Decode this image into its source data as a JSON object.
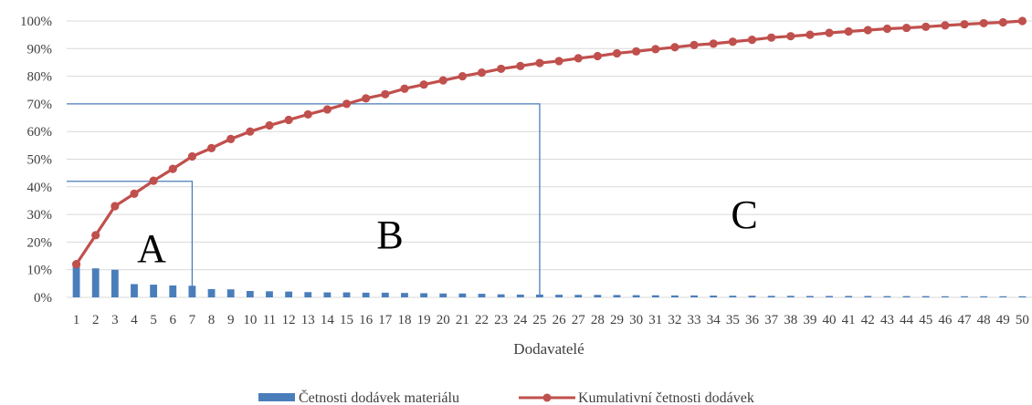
{
  "chart_data": {
    "type": "bar+line",
    "title": "",
    "xlabel": "Dodavatelé",
    "ylabel": "",
    "ylim": [
      0,
      100
    ],
    "y_unit": "%",
    "y_ticks": [
      0,
      10,
      20,
      30,
      40,
      50,
      60,
      70,
      80,
      90,
      100
    ],
    "y_tick_labels": [
      "0%",
      "10%",
      "20%",
      "30%",
      "40%",
      "50%",
      "60%",
      "70%",
      "80%",
      "90%",
      "100%"
    ],
    "categories": [
      "1",
      "2",
      "3",
      "4",
      "5",
      "6",
      "7",
      "8",
      "9",
      "10",
      "11",
      "12",
      "13",
      "14",
      "15",
      "16",
      "17",
      "18",
      "19",
      "20",
      "21",
      "22",
      "23",
      "24",
      "25",
      "26",
      "27",
      "28",
      "29",
      "30",
      "31",
      "32",
      "33",
      "34",
      "35",
      "36",
      "37",
      "38",
      "39",
      "40",
      "41",
      "42",
      "43",
      "44",
      "45",
      "46",
      "47",
      "48",
      "49",
      "50"
    ],
    "grid": true,
    "legend_position": "bottom",
    "series": [
      {
        "name": "Četnosti dodávek materiálu",
        "type": "bar",
        "color": "#4a7ebb",
        "values": [
          11.5,
          10.5,
          10.0,
          4.8,
          4.6,
          4.3,
          4.2,
          3.0,
          2.9,
          2.3,
          2.2,
          2.1,
          1.9,
          1.8,
          1.8,
          1.7,
          1.7,
          1.6,
          1.5,
          1.4,
          1.4,
          1.3,
          1.1,
          1.0,
          1.0,
          0.95,
          0.9,
          0.9,
          0.85,
          0.8,
          0.75,
          0.7,
          0.7,
          0.65,
          0.6,
          0.6,
          0.55,
          0.55,
          0.5,
          0.5,
          0.5,
          0.5,
          0.45,
          0.45,
          0.45,
          0.4,
          0.4,
          0.4,
          0.4,
          0.4
        ]
      },
      {
        "name": "Kumulativní četnosti dodávek",
        "type": "line",
        "color": "#c0504d",
        "values": [
          12.0,
          22.5,
          33.0,
          37.5,
          42.2,
          46.5,
          51.0,
          54.0,
          57.3,
          60.0,
          62.2,
          64.2,
          66.2,
          68.0,
          70.0,
          72.0,
          73.5,
          75.5,
          77.0,
          78.5,
          80.0,
          81.3,
          82.7,
          83.7,
          84.8,
          85.5,
          86.5,
          87.3,
          88.3,
          89.0,
          89.8,
          90.5,
          91.3,
          91.8,
          92.5,
          93.2,
          94.0,
          94.5,
          95.0,
          95.7,
          96.2,
          96.7,
          97.2,
          97.5,
          97.9,
          98.4,
          98.8,
          99.2,
          99.5,
          100.0
        ]
      }
    ],
    "annotations": {
      "regions": [
        {
          "label": "A",
          "end_category": "7",
          "cumulative_percent": 42,
          "color": "#4a7ebb"
        },
        {
          "label": "B",
          "end_category": "25",
          "cumulative_percent": 70,
          "color": "#4a7ebb"
        },
        {
          "label": "C"
        }
      ]
    }
  }
}
